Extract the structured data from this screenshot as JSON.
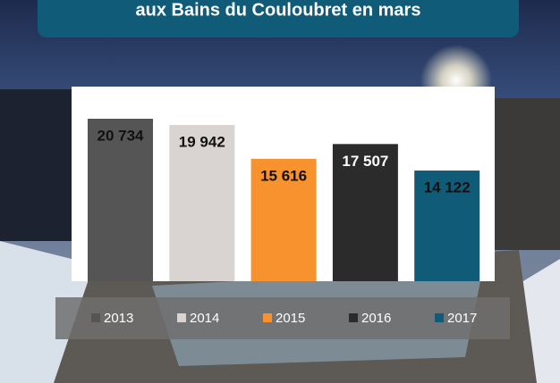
{
  "chart_data": {
    "type": "bar",
    "title": "aux Bains du Couloubret en mars",
    "series": [
      {
        "name": "2013",
        "color": "#555555",
        "values": [
          20734
        ],
        "value_labels": [
          "20 734"
        ]
      },
      {
        "name": "2014",
        "color": "#d9d3d1",
        "values": [
          19942
        ],
        "value_labels": [
          "19 942"
        ]
      },
      {
        "name": "2015",
        "color": "#f7922f",
        "values": [
          15616
        ],
        "value_labels": [
          "15 616"
        ]
      },
      {
        "name": "2016",
        "color": "#2b2b2b",
        "values": [
          17507
        ],
        "value_labels": [
          "17 507"
        ]
      },
      {
        "name": "2017",
        "color": "#0f5b78",
        "values": [
          14122
        ],
        "value_labels": [
          "14 122"
        ]
      }
    ],
    "legend": "bottom"
  }
}
